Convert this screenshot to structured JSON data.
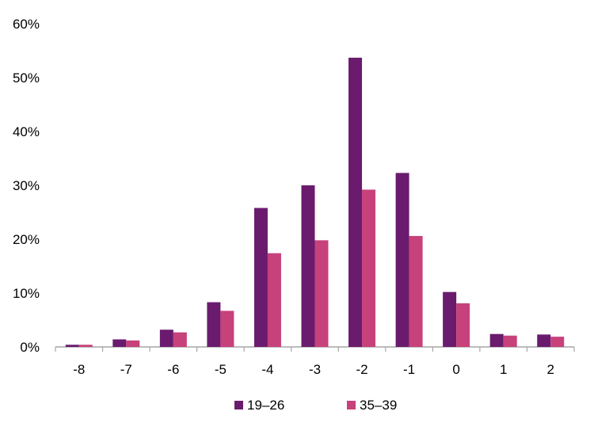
{
  "chart_data": {
    "type": "bar",
    "categories": [
      "-8",
      "-7",
      "-6",
      "-5",
      "-4",
      "-3",
      "-2",
      "-1",
      "0",
      "1",
      "2"
    ],
    "series": [
      {
        "name": "19–26",
        "color": "#6a1b6e",
        "values": [
          0.4,
          1.4,
          3.2,
          8.3,
          25.8,
          30.0,
          53.7,
          32.3,
          10.2,
          2.4,
          2.3
        ]
      },
      {
        "name": "35–39",
        "color": "#c7417b",
        "values": [
          0.4,
          1.2,
          2.7,
          6.7,
          17.4,
          19.8,
          29.2,
          20.6,
          8.1,
          2.1,
          1.9
        ]
      }
    ],
    "y_ticks": [
      "0%",
      "10%",
      "20%",
      "30%",
      "40%",
      "50%",
      "60%"
    ],
    "ylim": [
      0,
      60
    ],
    "grid": false,
    "legend_position": "bottom",
    "title": "",
    "xlabel": "",
    "ylabel": ""
  }
}
